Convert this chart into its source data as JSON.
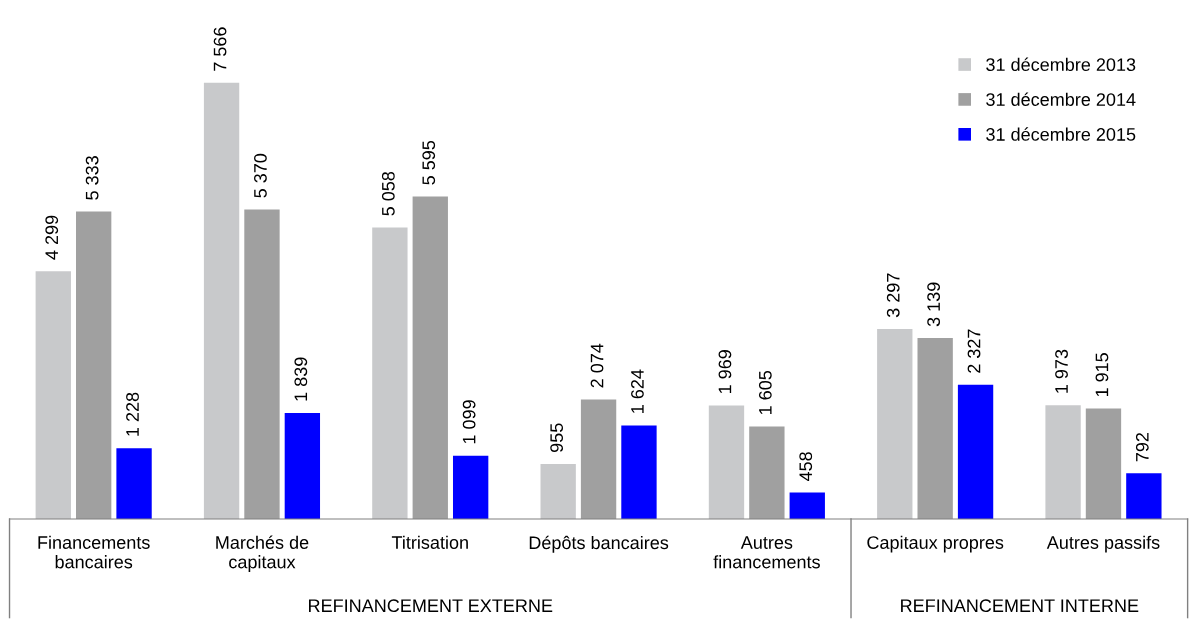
{
  "chart_data": {
    "type": "bar",
    "categories": [
      "Financements\nbancaires",
      "Marchés de\ncapitaux",
      "Titrisation",
      "Dépôts bancaires",
      "Autres\nfinancements",
      "Capitaux propres",
      "Autres passifs"
    ],
    "series": [
      {
        "name": "31 décembre 2013",
        "color": "#c8c9cb",
        "values": [
          4299,
          7566,
          5058,
          955,
          1969,
          3297,
          1973
        ],
        "value_labels": [
          "4 299",
          "7 566",
          "5 058",
          "955",
          "1 969",
          "3 297",
          "1 973"
        ]
      },
      {
        "name": "31 décembre 2014",
        "color": "#a0a0a0",
        "values": [
          5333,
          5370,
          5595,
          2074,
          1605,
          3139,
          1915
        ],
        "value_labels": [
          "5 333",
          "5 370",
          "5 595",
          "2 074",
          "1 605",
          "3 139",
          "1 915"
        ]
      },
      {
        "name": "31 décembre 2015",
        "color": "#0000ff",
        "values": [
          1228,
          1839,
          1099,
          1624,
          458,
          2327,
          792
        ],
        "value_labels": [
          "1 228",
          "1 839",
          "1 099",
          "1 624",
          "458",
          "2 327",
          "792"
        ]
      }
    ],
    "annotations": [
      "REFINANCEMENT EXTERNE",
      "REFINANCEMENT INTERNE"
    ],
    "legend": "top right",
    "grid": false
  }
}
